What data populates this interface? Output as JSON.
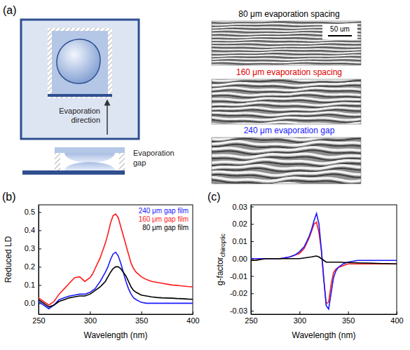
{
  "panel_a": {
    "panel_label": "(a)",
    "direction_label": "Evaporation direction",
    "gap_label": "Evaporation gap",
    "images": [
      {
        "label": "80 μm evaporation spacing",
        "color": "#000000"
      },
      {
        "label": "160 μm evaporation spacing",
        "color": "#e00000"
      },
      {
        "label": "240 μm evaporation gap",
        "color": "#1a1aff"
      }
    ],
    "scale_bar": "50 um"
  },
  "chart_data": [
    {
      "type": "line",
      "panel_label": "(b)",
      "xlabel": "Wavelength (nm)",
      "ylabel": "Reduced LD",
      "x": [
        250,
        255,
        260,
        265,
        270,
        275,
        280,
        285,
        290,
        295,
        300,
        302.5,
        305,
        307.5,
        310,
        312.5,
        315,
        317.5,
        320,
        322.5,
        325,
        327.5,
        330,
        332.5,
        335,
        337.5,
        340,
        342.5,
        345,
        350,
        355,
        360,
        365,
        370,
        375,
        380,
        385,
        390,
        395,
        400
      ],
      "xlim": [
        250,
        400
      ],
      "xticks": [
        250,
        300,
        350,
        400
      ],
      "ylim": [
        -0.06,
        0.54
      ],
      "yticks": [
        {
          "value": 0,
          "label": "0.0"
        },
        0.1,
        0.2,
        0.3,
        0.4,
        0.5
      ],
      "legend": "upper right",
      "series": [
        {
          "name": "240 μm gap film",
          "color": "#1a1aff",
          "values": [
            0.01,
            -0.01,
            -0.03,
            -0.01,
            0.02,
            0.03,
            0.04,
            0.045,
            0.05,
            0.05,
            0.06,
            0.07,
            0.08,
            0.1,
            0.12,
            0.145,
            0.17,
            0.2,
            0.24,
            0.27,
            0.28,
            0.26,
            0.22,
            0.17,
            0.12,
            0.08,
            0.05,
            0.03,
            0.02,
            0.005,
            0,
            0,
            0,
            0,
            0,
            0,
            0,
            0,
            0,
            0
          ]
        },
        {
          "name": "160 μm gap film",
          "color": "#ff1a1a",
          "values": [
            0.03,
            0.01,
            -0.01,
            0.01,
            0.05,
            0.08,
            0.11,
            0.14,
            0.145,
            0.12,
            0.14,
            0.16,
            0.19,
            0.22,
            0.25,
            0.29,
            0.33,
            0.38,
            0.44,
            0.48,
            0.49,
            0.47,
            0.42,
            0.37,
            0.32,
            0.27,
            0.22,
            0.19,
            0.17,
            0.145,
            0.13,
            0.12,
            0.115,
            0.11,
            0.105,
            0.1,
            0.098,
            0.095,
            0.092,
            0.09
          ]
        },
        {
          "name": "80 μm gap film",
          "color": "#000000",
          "values": [
            0.02,
            0,
            -0.02,
            -0.01,
            0.01,
            0.02,
            0.03,
            0.035,
            0.04,
            0.04,
            0.05,
            0.06,
            0.07,
            0.08,
            0.09,
            0.105,
            0.12,
            0.145,
            0.17,
            0.19,
            0.2,
            0.2,
            0.19,
            0.17,
            0.15,
            0.12,
            0.09,
            0.07,
            0.06,
            0.045,
            0.04,
            0.035,
            0.032,
            0.03,
            0.029,
            0.028,
            0.026,
            0.025,
            0.023,
            0.022
          ]
        }
      ]
    },
    {
      "type": "line",
      "panel_label": "(c)",
      "xlabel": "Wavelength (nm)",
      "ylabel": "g-factor",
      "ylabel_subscript": "chiroptic",
      "x": [
        250,
        255,
        260,
        265,
        270,
        275,
        280,
        285,
        290,
        295,
        300,
        302.5,
        305,
        307.5,
        310,
        312.5,
        315,
        317.5,
        320,
        322.5,
        325,
        327.5,
        330,
        332.5,
        335,
        337.5,
        340,
        342.5,
        345,
        350,
        355,
        360,
        365,
        370,
        375,
        380,
        385,
        390,
        395,
        400
      ],
      "xlim": [
        250,
        400
      ],
      "xticks": [
        250,
        300,
        350,
        400
      ],
      "ylim": [
        -0.032,
        0.031
      ],
      "yticks": [
        -0.03,
        -0.02,
        -0.01,
        {
          "value": 0,
          "label": "0.00"
        },
        0.01,
        0.02,
        0.03
      ],
      "series": [
        {
          "color": "#ff1a1a",
          "values": [
            -0.001,
            -0.001,
            0,
            0,
            0,
            0,
            0,
            0.0005,
            0.001,
            0.002,
            0.003,
            0.0045,
            0.006,
            0.009,
            0.012,
            0.016,
            0.02,
            0.021,
            0.015,
            0.005,
            -0.012,
            -0.026,
            -0.025,
            -0.015,
            -0.008,
            -0.006,
            -0.005,
            -0.0045,
            -0.004,
            -0.003,
            -0.003,
            -0.003,
            -0.003,
            -0.003,
            -0.003,
            -0.003,
            -0.003,
            -0.003,
            -0.003,
            -0.003
          ]
        },
        {
          "color": "#1a1aff",
          "values": [
            0,
            0,
            0,
            0,
            0,
            0,
            0,
            0.0005,
            0.001,
            0.002,
            0.004,
            0.0055,
            0.007,
            0.01,
            0.013,
            0.017,
            0.022,
            0.026,
            0.02,
            0.005,
            -0.012,
            -0.027,
            -0.029,
            -0.02,
            -0.011,
            -0.007,
            -0.005,
            -0.004,
            -0.003,
            -0.002,
            -0.0015,
            -0.001,
            -0.001,
            -0.001,
            -0.001,
            -0.001,
            -0.001,
            -0.001,
            -0.001,
            -0.001
          ]
        },
        {
          "color": "#000000",
          "values": [
            -0.001,
            -0.001,
            -0.0005,
            0,
            0,
            0,
            0,
            0,
            0,
            0,
            0,
            0.0002,
            0.0004,
            0.0006,
            0.0008,
            0.001,
            0.0013,
            0.0015,
            0.001,
            0,
            -0.001,
            -0.002,
            -0.002,
            -0.002,
            -0.002,
            -0.002,
            -0.002,
            -0.002,
            -0.0022,
            -0.0022,
            -0.0023,
            -0.0024,
            -0.0025,
            -0.0025,
            -0.0026,
            -0.0027,
            -0.0028,
            -0.0028,
            -0.0029,
            -0.003
          ]
        }
      ]
    }
  ]
}
